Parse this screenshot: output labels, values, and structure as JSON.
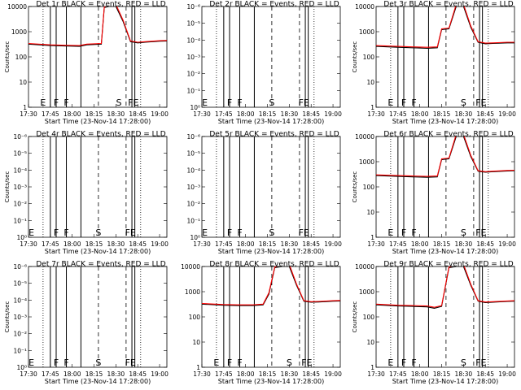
{
  "chart_data": [
    {
      "type": "line",
      "title": "Det 1r BLACK = Events, RED = LLD",
      "ylabel": "Counts/sec",
      "xlabel": "Start Time (23-Nov-14 17:28:00)",
      "xticks": [
        "17:30",
        "17:45",
        "18:00",
        "18:15",
        "18:30",
        "18:45",
        "19:00"
      ],
      "yscale": "log",
      "ylim": [
        1,
        10000
      ],
      "yticks": [
        "1",
        "10",
        "100",
        "1000",
        "10000"
      ],
      "flags": [
        {
          "label": "E",
          "x": "17:40"
        },
        {
          "label": "F",
          "x": "17:49"
        },
        {
          "label": "F",
          "x": "17:56"
        },
        {
          "label": "S",
          "x": "18:32"
        },
        {
          "label": "FE",
          "x": "18:42"
        }
      ],
      "series": [
        {
          "color": "#000000",
          "x": [
            "17:30",
            "17:45",
            "17:55",
            "18:05",
            "18:10",
            "18:20",
            "18:22",
            "18:25",
            "18:30",
            "18:35",
            "18:40",
            "18:45",
            "18:50",
            "19:00",
            "19:05"
          ],
          "y": [
            320,
            280,
            270,
            260,
            300,
            320,
            9000,
            10000,
            10000,
            2500,
            400,
            360,
            380,
            420,
            430
          ]
        },
        {
          "color": "#ff0000",
          "x": [
            "17:30",
            "17:45",
            "17:55",
            "18:05",
            "18:10",
            "18:20",
            "18:22",
            "18:25",
            "18:30",
            "18:35",
            "18:40",
            "18:45",
            "18:50",
            "19:00",
            "19:05"
          ],
          "y": [
            340,
            300,
            290,
            280,
            320,
            340,
            9500,
            12000,
            12000,
            2800,
            430,
            380,
            400,
            440,
            450
          ]
        }
      ]
    },
    {
      "type": "line",
      "title": "Det 2r BLACK = Events, RED = LLD",
      "ylabel": "",
      "xlabel": "Start Time (23-Nov-14 17:28:00)",
      "xticks": [
        "17:30",
        "17:45",
        "18:00",
        "18:15",
        "18:30",
        "18:45",
        "19:00"
      ],
      "yscale": "log",
      "ylim": [
        1,
        1e-06
      ],
      "yticks": [
        "10⁰",
        "10⁻¹",
        "10⁻²",
        "10⁻³",
        "10⁻⁴",
        "10⁻⁵",
        "10⁻⁶"
      ],
      "flags": [
        {
          "label": "E",
          "x": "17:32"
        },
        {
          "label": "F",
          "x": "17:49"
        },
        {
          "label": "F",
          "x": "17:56"
        },
        {
          "label": "S",
          "x": "18:18"
        },
        {
          "label": "FE",
          "x": "18:40"
        }
      ],
      "series": []
    },
    {
      "type": "line",
      "title": "Det 3r BLACK = Events, RED = LLD",
      "ylabel": "Counts/sec",
      "xlabel": "Start Time (23-Nov-14 17:28:00)",
      "xticks": [
        "17:30",
        "17:45",
        "18:00",
        "18:15",
        "18:30",
        "18:45",
        "19:00"
      ],
      "yscale": "log",
      "ylim": [
        1,
        10000
      ],
      "yticks": [
        "1",
        "10",
        "100",
        "1000",
        "10000"
      ],
      "flags": [
        {
          "label": "E",
          "x": "17:40"
        },
        {
          "label": "F",
          "x": "17:49"
        },
        {
          "label": "F",
          "x": "17:56"
        },
        {
          "label": "S",
          "x": "18:30"
        },
        {
          "label": "FE",
          "x": "18:42"
        }
      ],
      "series": [
        {
          "color": "#000000",
          "x": [
            "17:30",
            "17:45",
            "17:55",
            "18:05",
            "18:12",
            "18:15",
            "18:20",
            "18:25",
            "18:30",
            "18:35",
            "18:40",
            "18:45",
            "18:50",
            "19:00",
            "19:05"
          ],
          "y": [
            260,
            240,
            230,
            220,
            230,
            1200,
            1300,
            10000,
            10000,
            1500,
            380,
            330,
            340,
            360,
            360
          ]
        },
        {
          "color": "#ff0000",
          "x": [
            "17:30",
            "17:45",
            "17:55",
            "18:05",
            "18:12",
            "18:15",
            "18:20",
            "18:25",
            "18:30",
            "18:35",
            "18:40",
            "18:45",
            "18:50",
            "19:00",
            "19:05"
          ],
          "y": [
            280,
            260,
            250,
            240,
            250,
            1300,
            1400,
            12000,
            12000,
            1700,
            400,
            350,
            360,
            380,
            380
          ]
        }
      ]
    },
    {
      "type": "line",
      "title": "Det 4r BLACK = Events, RED = LLD",
      "ylabel": "Counts/sec",
      "xlabel": "Start Time (23-Nov-14 17:28:00)",
      "xticks": [
        "17:30",
        "17:45",
        "18:00",
        "18:15",
        "18:30",
        "18:45",
        "19:00"
      ],
      "yscale": "log",
      "ylim": [
        1,
        1e-06
      ],
      "yticks": [
        "10⁰",
        "10⁻¹",
        "10⁻²",
        "10⁻³",
        "10⁻⁴",
        "10⁻⁵",
        "10⁻⁶"
      ],
      "flags": [
        {
          "label": "E",
          "x": "17:32"
        },
        {
          "label": "F",
          "x": "17:49"
        },
        {
          "label": "F",
          "x": "17:56"
        },
        {
          "label": "S",
          "x": "18:18"
        },
        {
          "label": "FE",
          "x": "18:40"
        }
      ],
      "series": []
    },
    {
      "type": "line",
      "title": "Det 5r BLACK = Events, RED = LLD",
      "ylabel": "",
      "xlabel": "Start Time (23-Nov-14 17:28:00)",
      "xticks": [
        "17:30",
        "17:45",
        "18:00",
        "18:15",
        "18:30",
        "18:45",
        "19:00"
      ],
      "yscale": "log",
      "ylim": [
        1,
        1e-06
      ],
      "yticks": [
        "10⁰",
        "10⁻¹",
        "10⁻²",
        "10⁻³",
        "10⁻⁴",
        "10⁻⁵",
        "10⁻⁶"
      ],
      "flags": [
        {
          "label": "E",
          "x": "17:32"
        },
        {
          "label": "F",
          "x": "17:49"
        },
        {
          "label": "F",
          "x": "17:56"
        },
        {
          "label": "S",
          "x": "18:18"
        },
        {
          "label": "FE",
          "x": "18:40"
        }
      ],
      "series": []
    },
    {
      "type": "line",
      "title": "Det 6r BLACK = Events, RED = LLD",
      "ylabel": "Counts/sec",
      "xlabel": "Start Time (23-Nov-14 17:28:00)",
      "xticks": [
        "17:30",
        "17:45",
        "18:00",
        "18:15",
        "18:30",
        "18:45",
        "19:00"
      ],
      "yscale": "log",
      "ylim": [
        1,
        10000
      ],
      "yticks": [
        "1",
        "10",
        "100",
        "1000",
        "10000"
      ],
      "flags": [
        {
          "label": "E",
          "x": "17:40"
        },
        {
          "label": "F",
          "x": "17:49"
        },
        {
          "label": "F",
          "x": "17:56"
        },
        {
          "label": "S",
          "x": "18:30"
        },
        {
          "label": "FE",
          "x": "18:42"
        }
      ],
      "series": [
        {
          "color": "#000000",
          "x": [
            "17:30",
            "17:45",
            "17:55",
            "18:05",
            "18:12",
            "18:15",
            "18:20",
            "18:25",
            "18:30",
            "18:35",
            "18:40",
            "18:45",
            "18:50",
            "19:00",
            "19:05"
          ],
          "y": [
            280,
            260,
            250,
            240,
            250,
            1200,
            1300,
            10000,
            10000,
            1600,
            420,
            380,
            400,
            430,
            440
          ]
        },
        {
          "color": "#ff0000",
          "x": [
            "17:30",
            "17:45",
            "17:55",
            "18:05",
            "18:12",
            "18:15",
            "18:20",
            "18:25",
            "18:30",
            "18:35",
            "18:40",
            "18:45",
            "18:50",
            "19:00",
            "19:05"
          ],
          "y": [
            300,
            280,
            270,
            260,
            270,
            1300,
            1400,
            12000,
            12000,
            1800,
            440,
            400,
            420,
            450,
            460
          ]
        }
      ]
    },
    {
      "type": "line",
      "title": "Det 7r BLACK = Events, RED = LLD",
      "ylabel": "Counts/sec",
      "xlabel": "Start Time (23-Nov-14 17:28:00)",
      "xticks": [
        "17:30",
        "17:45",
        "18:00",
        "18:15",
        "18:30",
        "18:45",
        "19:00"
      ],
      "yscale": "log",
      "ylim": [
        1,
        1e-06
      ],
      "yticks": [
        "10⁰",
        "10⁻¹",
        "10⁻²",
        "10⁻³",
        "10⁻⁴",
        "10⁻⁵",
        "10⁻⁶"
      ],
      "flags": [
        {
          "label": "E",
          "x": "17:32"
        },
        {
          "label": "F",
          "x": "17:49"
        },
        {
          "label": "F",
          "x": "17:56"
        },
        {
          "label": "S",
          "x": "18:18"
        },
        {
          "label": "FE",
          "x": "18:40"
        }
      ],
      "series": []
    },
    {
      "type": "line",
      "title": "Det 8r BLACK = Events, RED = LLD",
      "ylabel": "",
      "xlabel": "Start Time (23-Nov-14 17:28:00)",
      "xticks": [
        "17:30",
        "17:45",
        "18:00",
        "18:15",
        "18:30",
        "18:45",
        "19:00"
      ],
      "yscale": "log",
      "ylim": [
        1,
        10000
      ],
      "yticks": [
        "1",
        "10",
        "100",
        "1000",
        "10000"
      ],
      "flags": [
        {
          "label": "E",
          "x": "17:40"
        },
        {
          "label": "F",
          "x": "17:49"
        },
        {
          "label": "F",
          "x": "17:56"
        },
        {
          "label": "S",
          "x": "18:30"
        },
        {
          "label": "FE",
          "x": "18:42"
        }
      ],
      "series": [
        {
          "color": "#000000",
          "x": [
            "17:30",
            "17:45",
            "17:55",
            "18:05",
            "18:12",
            "18:16",
            "18:20",
            "18:25",
            "18:30",
            "18:35",
            "18:40",
            "18:45",
            "18:50",
            "19:00",
            "19:05"
          ],
          "y": [
            320,
            290,
            280,
            280,
            300,
            800,
            9000,
            10000,
            10000,
            1800,
            420,
            380,
            390,
            420,
            430
          ]
        },
        {
          "color": "#ff0000",
          "x": [
            "17:30",
            "17:45",
            "17:55",
            "18:05",
            "18:12",
            "18:16",
            "18:20",
            "18:25",
            "18:30",
            "18:35",
            "18:40",
            "18:45",
            "18:50",
            "19:00",
            "19:05"
          ],
          "y": [
            340,
            310,
            300,
            300,
            320,
            900,
            9500,
            12000,
            12000,
            2000,
            440,
            400,
            410,
            440,
            450
          ]
        }
      ]
    },
    {
      "type": "line",
      "title": "Det 9r BLACK = Events, RED = LLD",
      "ylabel": "Counts/sec",
      "xlabel": "Start Time (23-Nov-14 17:28:00)",
      "xticks": [
        "17:30",
        "17:45",
        "18:00",
        "18:15",
        "18:30",
        "18:45",
        "19:00"
      ],
      "yscale": "log",
      "ylim": [
        1,
        10000
      ],
      "yticks": [
        "1",
        "10",
        "100",
        "1000",
        "10000"
      ],
      "flags": [
        {
          "label": "E",
          "x": "17:40"
        },
        {
          "label": "F",
          "x": "17:49"
        },
        {
          "label": "F",
          "x": "17:56"
        },
        {
          "label": "S",
          "x": "18:30"
        },
        {
          "label": "FE",
          "x": "18:42"
        }
      ],
      "series": [
        {
          "color": "#000000",
          "x": [
            "17:30",
            "17:45",
            "17:55",
            "18:05",
            "18:10",
            "18:15",
            "18:20",
            "18:25",
            "18:30",
            "18:35",
            "18:40",
            "18:45",
            "18:50",
            "19:00",
            "19:05"
          ],
          "y": [
            300,
            270,
            260,
            250,
            220,
            260,
            9000,
            10000,
            10000,
            1800,
            420,
            370,
            380,
            410,
            420
          ]
        },
        {
          "color": "#ff0000",
          "x": [
            "17:30",
            "17:45",
            "17:55",
            "18:05",
            "18:10",
            "18:15",
            "18:20",
            "18:25",
            "18:30",
            "18:35",
            "18:40",
            "18:45",
            "18:50",
            "19:00",
            "19:05"
          ],
          "y": [
            320,
            290,
            280,
            270,
            240,
            280,
            9500,
            12000,
            12000,
            2000,
            440,
            390,
            400,
            430,
            440
          ]
        }
      ]
    }
  ]
}
